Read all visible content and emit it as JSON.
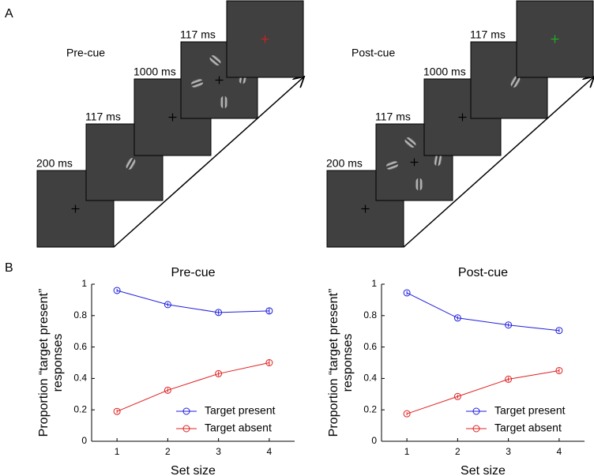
{
  "panel_labels": [
    "A",
    "B"
  ],
  "trials": [
    {
      "title": "Pre-cue",
      "durations": [
        "200 ms",
        "117 ms",
        "1000 ms",
        "117 ms"
      ]
    },
    {
      "title": "Post-cue",
      "durations": [
        "200 ms",
        "117 ms",
        "1000 ms",
        "117 ms"
      ]
    }
  ],
  "chart_data": [
    {
      "type": "line",
      "title": "Pre-cue",
      "xlabel": "Set size",
      "ylabel": [
        "Proportion “target present”",
        "responses"
      ],
      "x": [
        1,
        2,
        3,
        4
      ],
      "xlim": [
        0.5,
        4.5
      ],
      "xticks": [
        1,
        2,
        3,
        4
      ],
      "ylim": [
        0,
        1
      ],
      "yticks": [
        0,
        0.2,
        0.4,
        0.6,
        0.8,
        1
      ],
      "legend": "lower right",
      "series": [
        {
          "name": "Target present",
          "color": "#1f1fdc",
          "values": [
            0.96,
            0.87,
            0.82,
            0.83
          ],
          "errors": [
            0.01,
            0.012,
            0.015,
            0.018
          ]
        },
        {
          "name": "Target absent",
          "color": "#e02020",
          "values": [
            0.19,
            0.325,
            0.43,
            0.5
          ],
          "errors": [
            0.012,
            0.013,
            0.015,
            0.018
          ]
        }
      ]
    },
    {
      "type": "line",
      "title": "Post-cue",
      "xlabel": "Set size",
      "ylabel": [
        "Proportion “target present”",
        "responses"
      ],
      "x": [
        1,
        2,
        3,
        4
      ],
      "xlim": [
        0.5,
        4.5
      ],
      "xticks": [
        1,
        2,
        3,
        4
      ],
      "ylim": [
        0,
        1
      ],
      "yticks": [
        0,
        0.2,
        0.4,
        0.6,
        0.8,
        1
      ],
      "legend": "lower right",
      "series": [
        {
          "name": "Target present",
          "color": "#1f1fdc",
          "values": [
            0.945,
            0.785,
            0.74,
            0.705
          ],
          "errors": [
            0.012,
            0.012,
            0.012,
            0.012
          ]
        },
        {
          "name": "Target absent",
          "color": "#e02020",
          "values": [
            0.175,
            0.285,
            0.395,
            0.45
          ],
          "errors": [
            0.01,
            0.012,
            0.014,
            0.014
          ]
        }
      ]
    }
  ]
}
